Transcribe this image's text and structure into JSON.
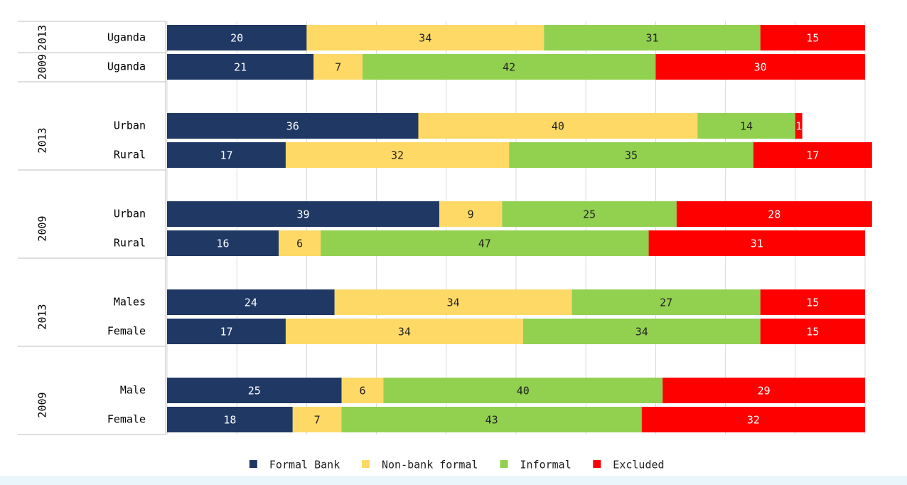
{
  "chart_data": {
    "type": "stacked-bar",
    "orientation": "horizontal",
    "groups": [
      {
        "label": "2013",
        "categories": [
          "Uganda"
        ]
      },
      {
        "label": "2009",
        "categories": [
          "Uganda"
        ]
      },
      {
        "label": "2013",
        "categories": [
          "Urban",
          "Rural"
        ]
      },
      {
        "label": "2009",
        "categories": [
          "Urban",
          "Rural"
        ]
      },
      {
        "label": "2013",
        "categories": [
          "Males",
          "Female"
        ]
      },
      {
        "label": "2009",
        "categories": [
          "Male",
          "Female"
        ]
      }
    ],
    "series": [
      {
        "name": "Formal Bank",
        "color": "#203864",
        "values": [
          20,
          21,
          36,
          17,
          39,
          16,
          24,
          17,
          25,
          18
        ]
      },
      {
        "name": "Non-bank formal",
        "color": "#ffd966",
        "values": [
          34,
          7,
          40,
          32,
          9,
          6,
          34,
          34,
          6,
          7
        ]
      },
      {
        "name": "Informal",
        "color": "#92d050",
        "values": [
          31,
          42,
          14,
          35,
          25,
          47,
          27,
          34,
          40,
          43
        ]
      },
      {
        "name": "Excluded",
        "color": "#ff0000",
        "values": [
          15,
          30,
          1,
          17,
          28,
          31,
          15,
          15,
          29,
          32
        ]
      }
    ],
    "xlim": [
      0,
      100
    ],
    "xticks": [
      0,
      10,
      20,
      30,
      40,
      50,
      60,
      70,
      80,
      90,
      100
    ],
    "grid": true,
    "legend": "bottom"
  }
}
